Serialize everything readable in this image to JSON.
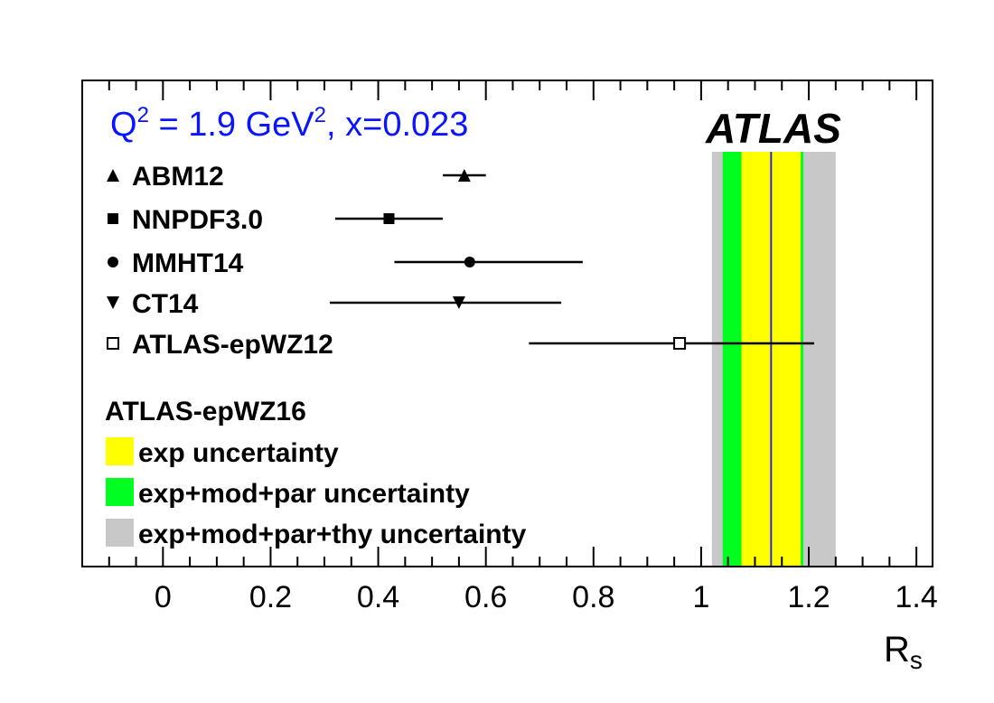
{
  "chart_data": {
    "type": "scatter",
    "subtype": "horizontal error-bar comparison",
    "header": {
      "q2_text": "Q",
      "q2_sup": "2",
      "mid_text": " = 1.9 GeV",
      "gev_sup": "2",
      "tail_text": ", x=0.023",
      "color": "#0a14ff"
    },
    "experiment_label": "ATLAS",
    "xlabel": {
      "main": "R",
      "sub": "s"
    },
    "xlim": [
      -0.15,
      1.43
    ],
    "xticks": [
      0,
      0.2,
      0.4,
      0.6,
      0.8,
      1,
      1.2,
      1.4
    ],
    "xtick_labels": [
      "0",
      "0.2",
      "0.4",
      "0.6",
      "0.8",
      "1",
      "1.2",
      "1.4"
    ],
    "minor_tick_step": 0.05,
    "grid": false,
    "series": [
      {
        "name": "ABM12",
        "marker": "triangle-up",
        "x": 0.56,
        "xlow": 0.52,
        "xhigh": 0.6
      },
      {
        "name": "NNPDF3.0",
        "marker": "square",
        "x": 0.42,
        "xlow": 0.32,
        "xhigh": 0.52
      },
      {
        "name": "MMHT14",
        "marker": "circle",
        "x": 0.57,
        "xlow": 0.43,
        "xhigh": 0.78
      },
      {
        "name": "CT14",
        "marker": "triangle-down",
        "x": 0.55,
        "xlow": 0.31,
        "xhigh": 0.74
      },
      {
        "name": "ATLAS-epWZ12",
        "marker": "open-square",
        "x": 0.96,
        "xlow": 0.68,
        "xhigh": 1.21
      }
    ],
    "measurement": {
      "name": "ATLAS-epWZ16",
      "central": 1.13,
      "central_color": "#2a2ad6",
      "bands": [
        {
          "label": "exp+mod+par+thy uncertainty",
          "low": 1.02,
          "high": 1.25,
          "color": "#c8c8c8"
        },
        {
          "label": "exp+mod+par uncertainty",
          "low": 1.04,
          "high": 1.19,
          "color": "#00ff20"
        },
        {
          "label": "exp uncertainty",
          "low": 1.075,
          "high": 1.185,
          "color": "#ffff00"
        }
      ],
      "legend_order": [
        "exp uncertainty",
        "exp+mod+par uncertainty",
        "exp+mod+par+thy uncertainty"
      ]
    }
  }
}
